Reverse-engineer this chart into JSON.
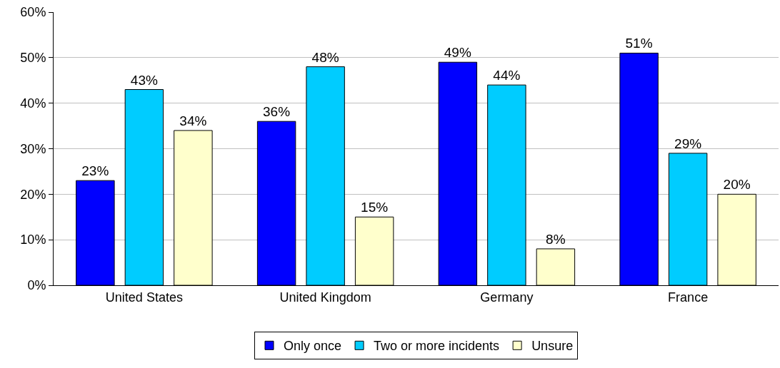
{
  "chart_data": {
    "type": "bar",
    "categories": [
      "United States",
      "United Kingdom",
      "Germany",
      "France"
    ],
    "series": [
      {
        "name": "Only once",
        "color": "#0000ff",
        "values": [
          23,
          36,
          49,
          51
        ],
        "value_labels": [
          "23%",
          "36%",
          "49%",
          "51%"
        ]
      },
      {
        "name": "Two or more incidents",
        "color": "#00ccff",
        "values": [
          43,
          48,
          44,
          29
        ],
        "value_labels": [
          "43%",
          "48%",
          "44%",
          "29%"
        ]
      },
      {
        "name": "Unsure",
        "color": "#ffffcc",
        "values": [
          34,
          15,
          8,
          20
        ],
        "value_labels": [
          "34%",
          "15%",
          "8%",
          "20%"
        ]
      }
    ],
    "ylim": [
      0,
      60
    ],
    "yticks": [
      {
        "value": 0,
        "label": "0%"
      },
      {
        "value": 10,
        "label": "10%"
      },
      {
        "value": 20,
        "label": "20%"
      },
      {
        "value": 30,
        "label": "30%"
      },
      {
        "value": 40,
        "label": "40%"
      },
      {
        "value": 50,
        "label": "50%"
      },
      {
        "value": 60,
        "label": "60%"
      }
    ],
    "grid": "y",
    "legend": "bottom"
  }
}
